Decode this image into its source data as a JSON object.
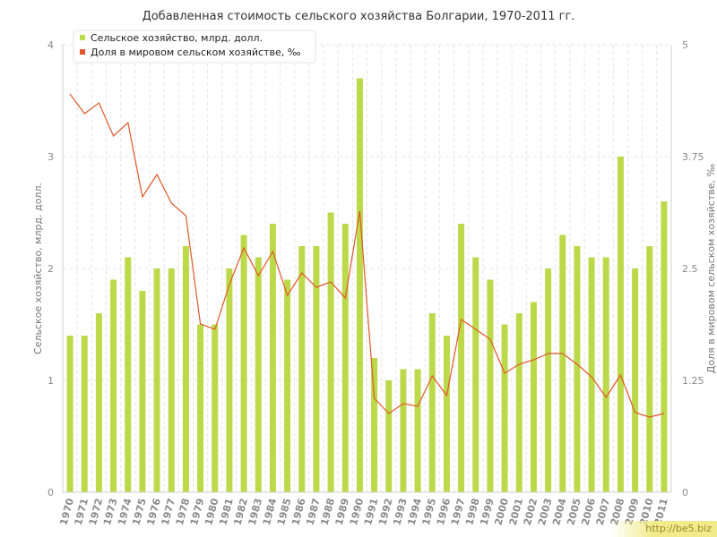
{
  "colors": {
    "bar": "#bcd94a",
    "line": "#e0582a",
    "grid": "#e6e6e6"
  },
  "watermark": "http://be5.biz",
  "chart_data": {
    "type": "bar",
    "title": "Добавленная стоимость сельского хозяйства Болгарии, 1970-2011 гг.",
    "ylabel": "Сельское хозяйство, млрд. долл.",
    "y2label": "Доля в мировом сельском хозяйстве, ‰",
    "ylim": [
      0,
      4
    ],
    "y2lim": [
      0,
      5
    ],
    "yticks": [
      "0",
      "1",
      "2",
      "3",
      "4"
    ],
    "y2ticks": [
      "0",
      "1.25",
      "2.5",
      "3.75",
      "5"
    ],
    "legend_position": "top-left",
    "categories": [
      "1970",
      "1971",
      "1972",
      "1973",
      "1974",
      "1975",
      "1976",
      "1977",
      "1978",
      "1979",
      "1980",
      "1981",
      "1982",
      "1983",
      "1984",
      "1985",
      "1986",
      "1987",
      "1988",
      "1989",
      "1990",
      "1991",
      "1992",
      "1993",
      "1994",
      "1995",
      "1996",
      "1997",
      "1998",
      "1999",
      "2000",
      "2001",
      "2002",
      "2003",
      "2004",
      "2005",
      "2006",
      "2007",
      "2008",
      "2009",
      "2010",
      "2011"
    ],
    "series": [
      {
        "name": "Сельское хозяйство, млрд. долл.",
        "kind": "bar",
        "axis": "left",
        "values": [
          1.4,
          1.4,
          1.6,
          1.9,
          2.1,
          1.8,
          2.0,
          2.0,
          2.2,
          1.5,
          1.5,
          2.0,
          2.3,
          2.1,
          2.4,
          1.9,
          2.2,
          2.2,
          2.5,
          2.4,
          3.7,
          1.2,
          1.0,
          1.1,
          1.1,
          1.6,
          1.4,
          2.4,
          2.1,
          1.9,
          1.5,
          1.6,
          1.7,
          2.0,
          2.3,
          2.2,
          2.1,
          2.1,
          3.0,
          2.0,
          2.2,
          2.6
        ]
      },
      {
        "name": "Доля в мировом сельском хозяйстве, ‰",
        "kind": "line",
        "axis": "right",
        "values": [
          4.45,
          4.23,
          4.35,
          3.98,
          4.13,
          3.3,
          3.55,
          3.23,
          3.09,
          1.88,
          1.82,
          2.32,
          2.73,
          2.42,
          2.69,
          2.2,
          2.45,
          2.29,
          2.35,
          2.17,
          3.14,
          1.05,
          0.88,
          0.99,
          0.96,
          1.3,
          1.08,
          1.93,
          1.82,
          1.71,
          1.33,
          1.43,
          1.48,
          1.55,
          1.55,
          1.43,
          1.29,
          1.06,
          1.31,
          0.89,
          0.84,
          0.88
        ]
      }
    ]
  }
}
